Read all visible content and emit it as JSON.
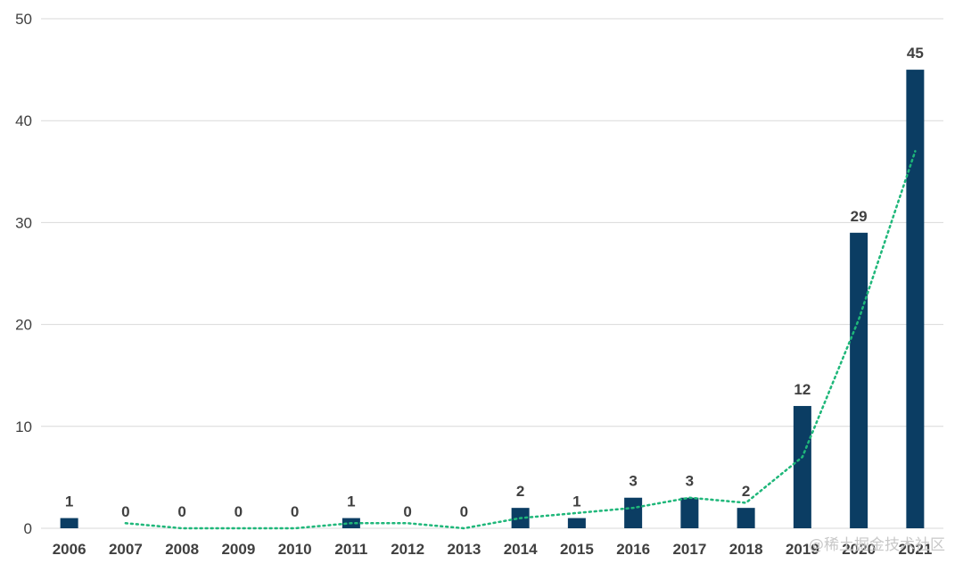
{
  "chart_data": {
    "type": "bar",
    "title": "",
    "xlabel": "",
    "ylabel": "",
    "categories": [
      "2006",
      "2007",
      "2008",
      "2009",
      "2010",
      "2011",
      "2012",
      "2013",
      "2014",
      "2015",
      "2016",
      "2017",
      "2018",
      "2019",
      "2020",
      "2021"
    ],
    "series": [
      {
        "values": [
          1,
          0,
          0,
          0,
          0,
          1,
          0,
          0,
          2,
          1,
          3,
          3,
          2,
          12,
          29,
          45
        ],
        "color": "#0b3d63"
      }
    ],
    "trendline": {
      "style": "dotted",
      "color": "#1fb77a",
      "values": [
        null,
        0.5,
        0,
        0,
        0,
        0.5,
        0.5,
        0,
        1,
        1.5,
        2,
        3,
        2.5,
        7,
        20.5,
        37
      ]
    },
    "ylim": [
      0,
      50
    ],
    "yticks": [
      0,
      10,
      20,
      30,
      40,
      50
    ],
    "grid": true,
    "legend": "none"
  },
  "watermark": "@稀土掘金技术社区"
}
